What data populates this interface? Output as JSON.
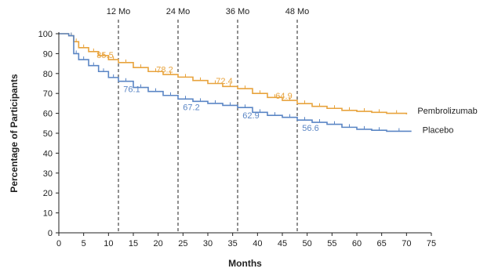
{
  "chart_data": {
    "type": "line",
    "xlabel": "Months",
    "ylabel": "Percentage of Participants",
    "xlim": [
      0,
      75
    ],
    "ylim": [
      0,
      100
    ],
    "x_ticks": [
      0,
      5,
      10,
      15,
      20,
      25,
      30,
      35,
      40,
      45,
      50,
      55,
      60,
      65,
      70,
      75
    ],
    "y_ticks": [
      0,
      10,
      20,
      30,
      40,
      50,
      60,
      70,
      80,
      90,
      100
    ],
    "reference_lines": [
      {
        "x": 12,
        "label": "12 Mo"
      },
      {
        "x": 24,
        "label": "24 Mo"
      },
      {
        "x": 36,
        "label": "36 Mo"
      },
      {
        "x": 48,
        "label": "48 Mo"
      }
    ],
    "series": [
      {
        "name": "Pembrolizumab",
        "color": "#e8a33d",
        "x": [
          0,
          2,
          3,
          4,
          6,
          8,
          10,
          12,
          15,
          18,
          21,
          24,
          27,
          30,
          33,
          36,
          39,
          42,
          45,
          48,
          51,
          54,
          57,
          60,
          63,
          66,
          70
        ],
        "y": [
          100,
          99,
          96,
          93,
          91,
          89,
          87,
          85.5,
          83,
          81,
          79.5,
          78.2,
          76.5,
          75,
          73.5,
          72.4,
          70,
          68,
          66.5,
          64.9,
          63.5,
          62.5,
          61.5,
          61,
          60.5,
          60,
          59.5
        ],
        "annotations": [
          {
            "x": 12,
            "y": 85.5,
            "text": "85.5"
          },
          {
            "x": 24,
            "y": 78.2,
            "text": "78.2"
          },
          {
            "x": 36,
            "y": 72.4,
            "text": "72.4"
          },
          {
            "x": 48,
            "y": 64.9,
            "text": "64.9"
          }
        ]
      },
      {
        "name": "Placebo",
        "color": "#5b86c5",
        "x": [
          0,
          2,
          3,
          4,
          6,
          8,
          10,
          12,
          15,
          18,
          21,
          24,
          27,
          30,
          33,
          36,
          39,
          42,
          45,
          48,
          51,
          54,
          57,
          60,
          63,
          66,
          71
        ],
        "y": [
          100,
          99,
          90,
          87,
          84,
          81,
          78,
          76.1,
          73,
          71,
          69,
          67.2,
          66,
          65,
          64,
          62.9,
          60.5,
          59,
          58,
          56.6,
          55.5,
          54.5,
          53,
          52,
          51.5,
          51,
          51
        ],
        "annotations": [
          {
            "x": 12,
            "y": 76.1,
            "text": "76.1"
          },
          {
            "x": 24,
            "y": 67.2,
            "text": "67.2"
          },
          {
            "x": 36,
            "y": 62.9,
            "text": "62.9"
          },
          {
            "x": 48,
            "y": 56.6,
            "text": "56.6"
          }
        ]
      }
    ]
  }
}
